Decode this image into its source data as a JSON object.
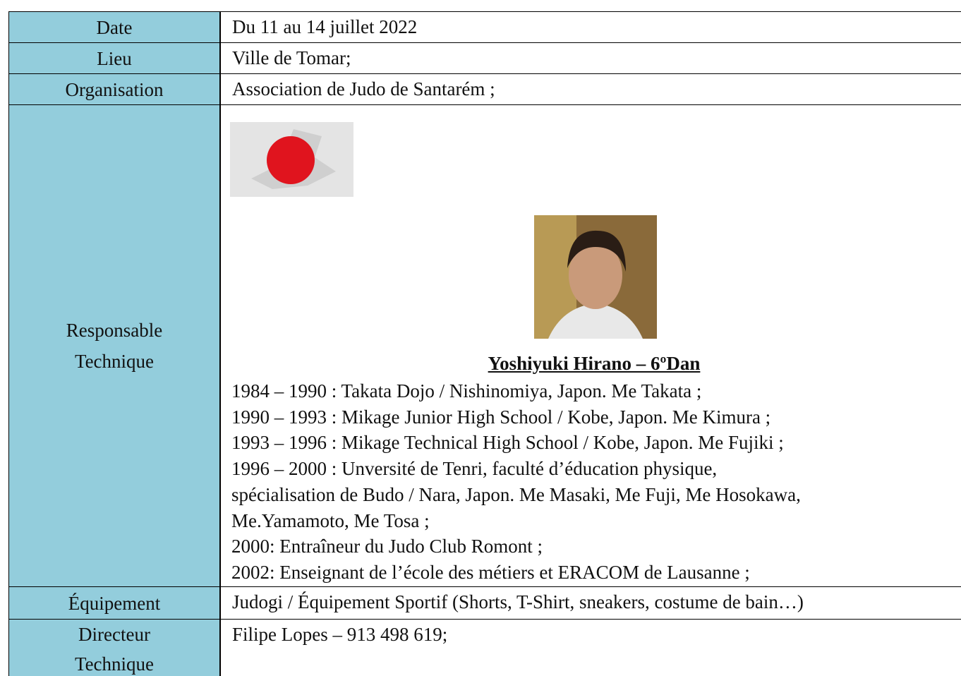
{
  "table": {
    "rows": [
      {
        "label": [
          "Date"
        ],
        "value": "Du 11 au 14 juillet 2022"
      },
      {
        "label": [
          "Lieu"
        ],
        "value": "Ville de Tomar;"
      },
      {
        "label": [
          "Organisation"
        ],
        "value": "Association de Judo de Santarém ;"
      },
      {
        "label": [
          "Responsable",
          "Technique"
        ],
        "name": "Yoshiyuki Hirano – 6ºDan",
        "lines": [
          "1984 – 1990 : Takata Dojo / Nishinomiya, Japon. Me Takata ;",
          "1990 – 1993 : Mikage Junior High School / Kobe, Japon. Me Kimura ;",
          "1993 – 1996 : Mikage Technical High School / Kobe, Japon. Me Fujiki ;",
          "1996 – 2000 : Unversité de Tenri, faculté d’éducation physique,",
          "spécialisation de Budo / Nara, Japon. Me Masaki, Me Fuji, Me Hosokawa,",
          "Me.Yamamoto, Me Tosa ;",
          "2000: Entraîneur du Judo Club Romont ;",
          "2002: Enseignant de l’école des métiers et ERACOM de Lausanne ;"
        ]
      },
      {
        "label": [
          "Équipement"
        ],
        "value": "Judogi / Équipement Sportif (Shorts, T-Shirt, sneakers, costume de bain…)"
      },
      {
        "label": [
          "Directeur",
          "Technique"
        ],
        "value": "Filipe Lopes – 913 498 619;"
      }
    ]
  }
}
